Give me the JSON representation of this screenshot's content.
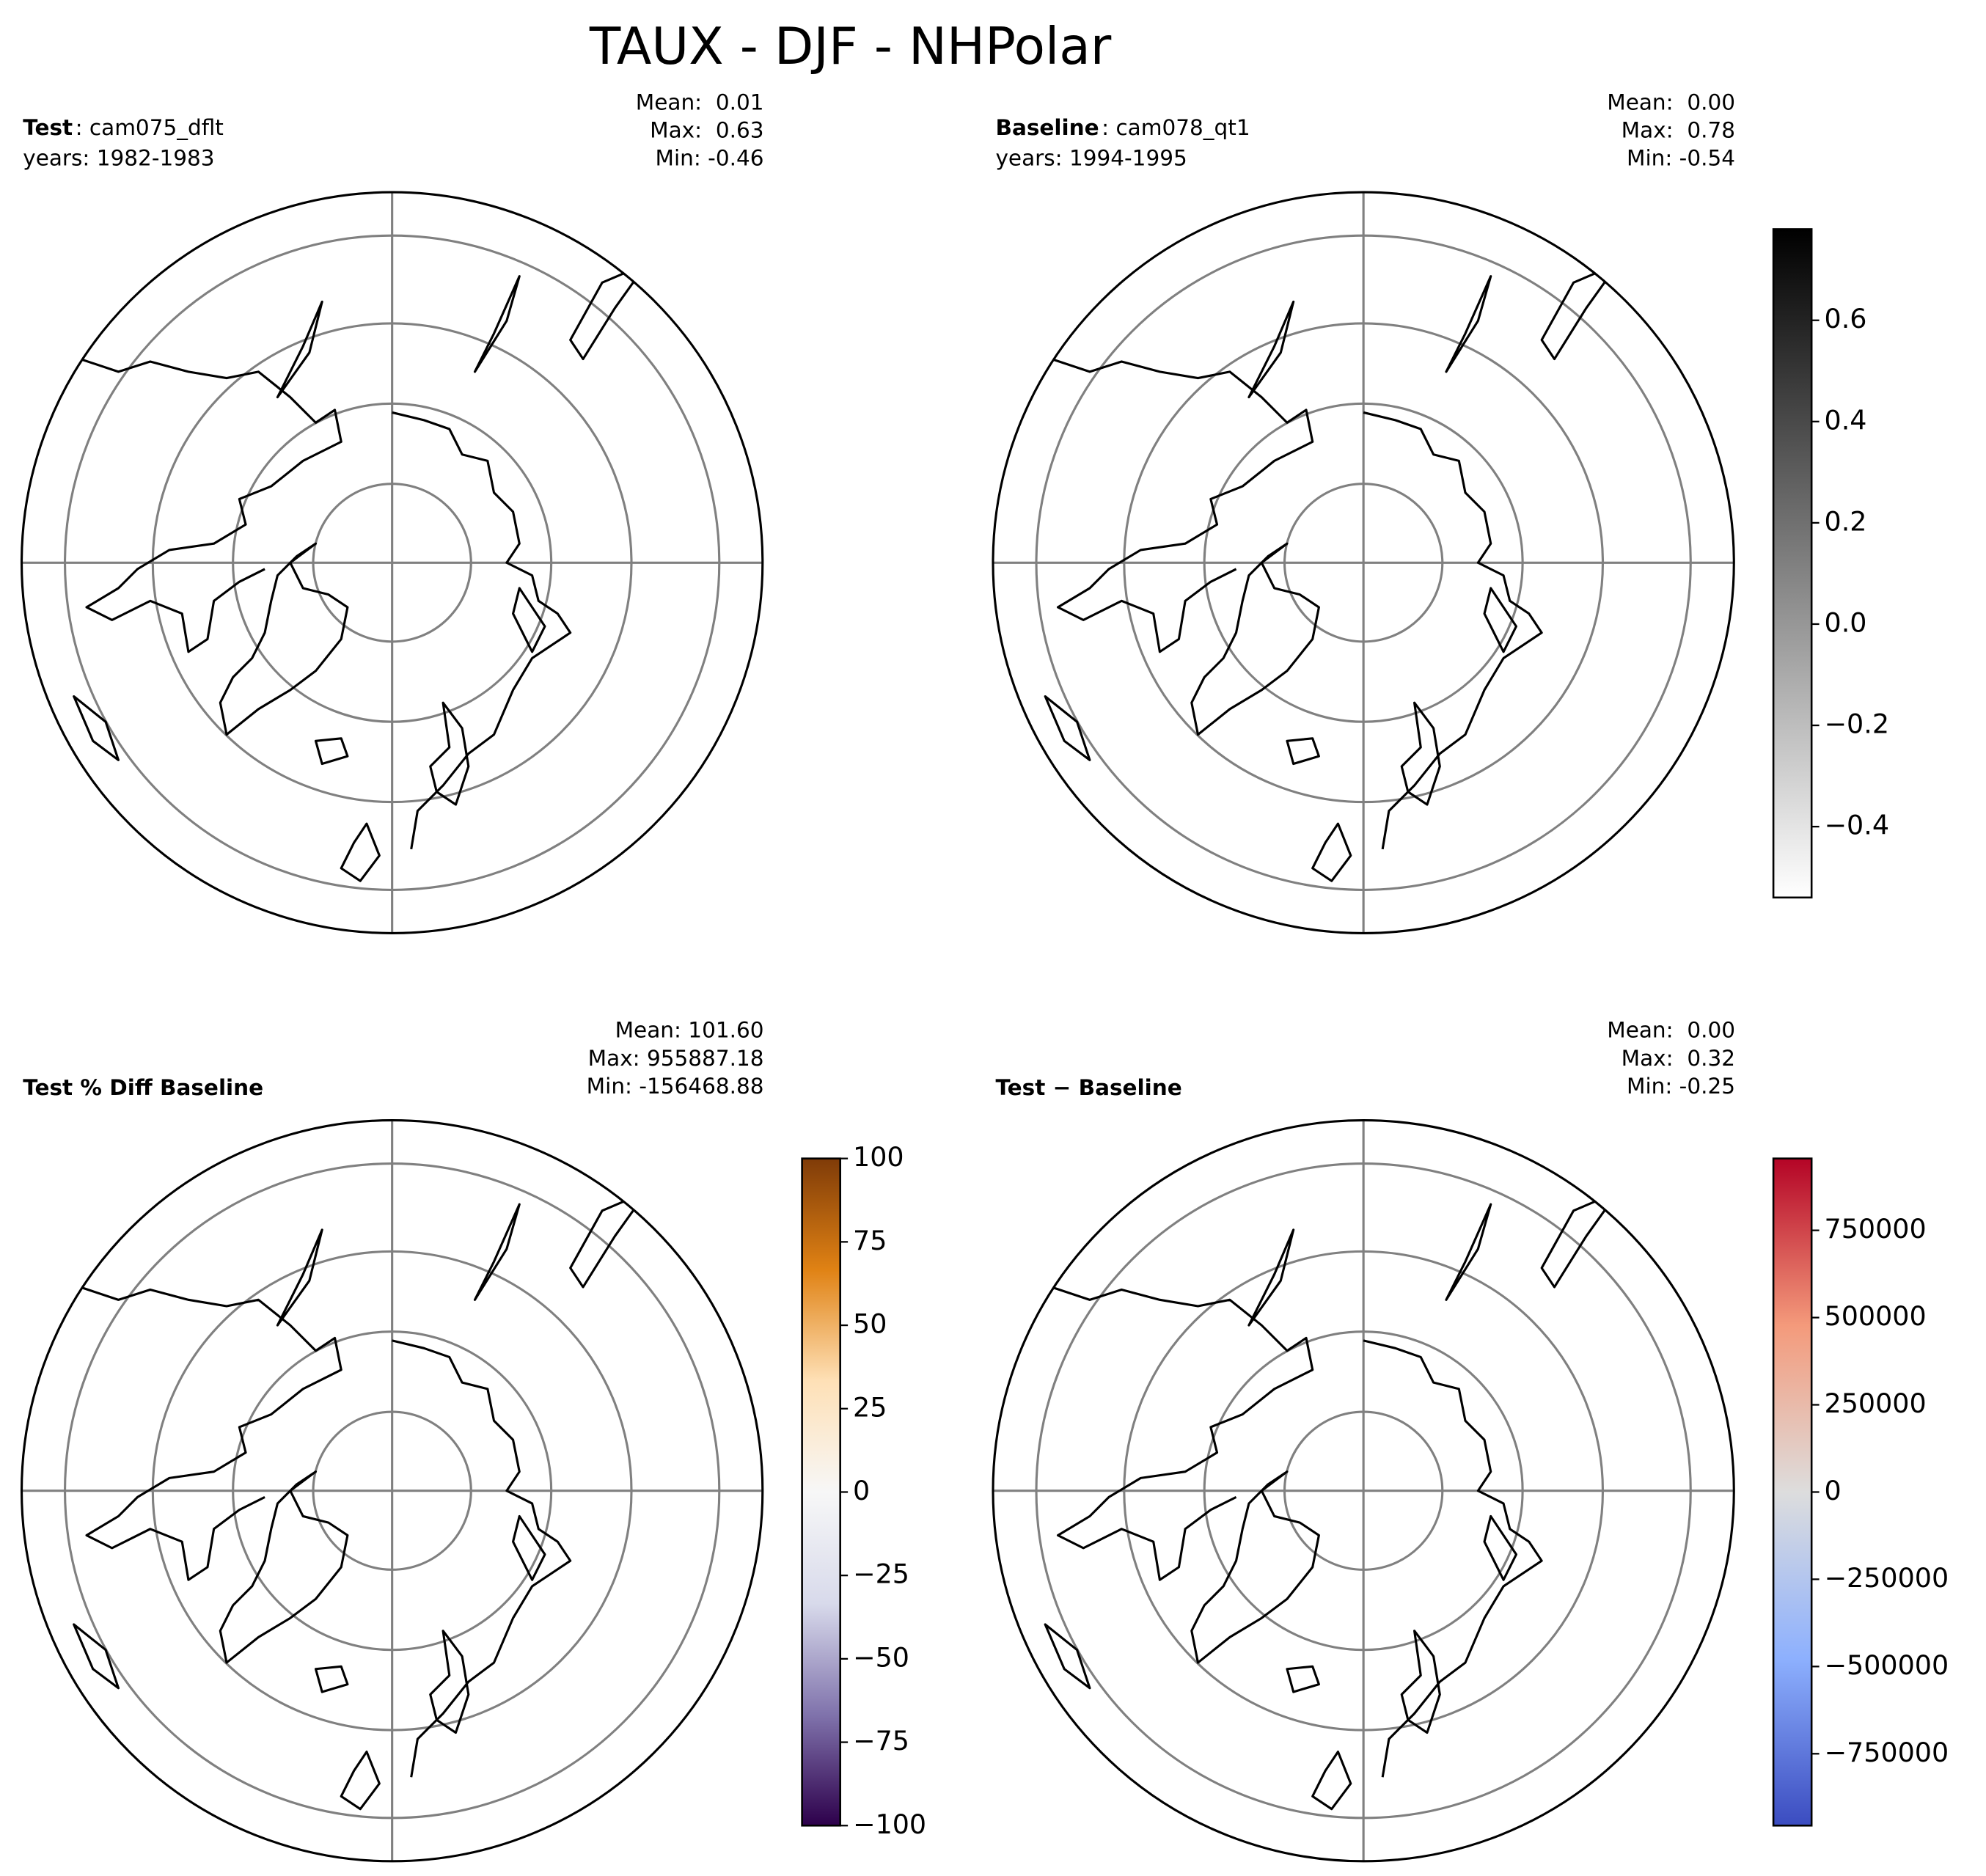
{
  "title": "TAUX - DJF - NHPolar",
  "panels": [
    {
      "label_bold": "Test",
      "label_rest": ": cam075_dflt",
      "years": "years: 1982-1983",
      "stats": [
        "Mean:  0.01",
        "Max:  0.63",
        "Min: -0.46"
      ]
    },
    {
      "label_bold": "Baseline",
      "label_rest": ": cam078_qt1",
      "years": "years: 1994-1995",
      "stats": [
        "Mean:  0.00",
        "Max:  0.78",
        "Min: -0.54"
      ]
    },
    {
      "label_bold": "Test % Diff Baseline",
      "stats": [
        "Mean: 101.60",
        "Max: 955887.18",
        "Min: -156468.88"
      ]
    },
    {
      "label_bold": "Test − Baseline",
      "stats": [
        "Mean:  0.00",
        "Max:  0.32",
        "Min: -0.25"
      ]
    }
  ],
  "colorbars": [
    {
      "panel": 1,
      "lim": [
        -0.54,
        0.78
      ],
      "colors": [
        "#ffffff",
        "#000000"
      ],
      "ticks": [
        {
          "value": -0.4,
          "label": "−0.4"
        },
        {
          "value": -0.2,
          "label": "−0.2"
        },
        {
          "value": 0.0,
          "label": "0.0"
        },
        0.2,
        0.4,
        0.6
      ]
    },
    {
      "panel": 2,
      "lim": [
        -100,
        100
      ],
      "colors": [
        "#2d004b",
        "#8073ac",
        "#d8daeb",
        "#f7f7f7",
        "#fee0b6",
        "#e08214",
        "#7f3b08"
      ],
      "ticks": [
        {
          "value": -100,
          "label": "−100"
        },
        {
          "value": -75,
          "label": "−75"
        },
        {
          "value": -50,
          "label": "−50"
        },
        {
          "value": -25,
          "label": "−25"
        },
        0,
        25,
        50,
        75,
        100
      ]
    },
    {
      "panel": 3,
      "lim": [
        -955887.18,
        955887.18
      ],
      "colors": [
        "#3b4cc0",
        "#8db0fe",
        "#dddddd",
        "#f49a7b",
        "#b40426"
      ],
      "ticks": [
        {
          "value": -750000,
          "label": "−750000"
        },
        {
          "value": -500000,
          "label": "−500000"
        },
        {
          "value": -250000,
          "label": "−250000"
        },
        0,
        250000,
        500000,
        750000
      ]
    }
  ]
}
